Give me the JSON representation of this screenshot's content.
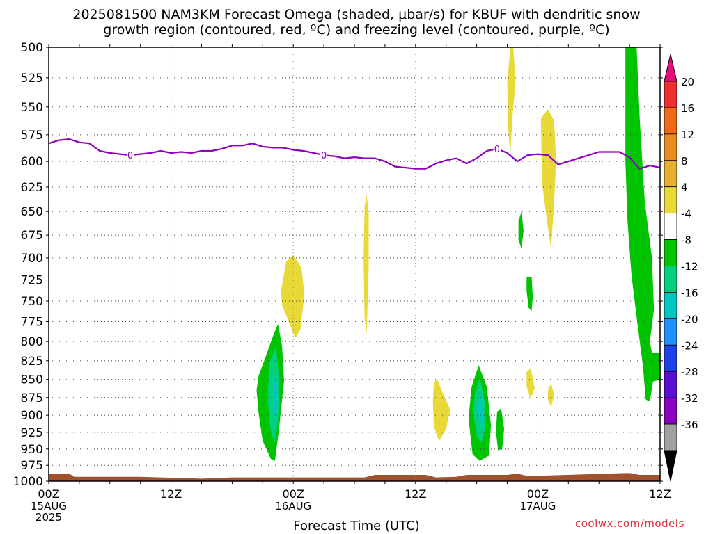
{
  "title": {
    "line1": "2025081500 NAM3KM Forecast Omega (shaded, μbar/s) for KBUF with dendritic snow",
    "line2": "growth region (contoured, red, ºC) and freezing level (contoured, purple, ºC)"
  },
  "xlabel": "Forecast Time (UTC)",
  "credit": "coolwx.com/models",
  "chart_data": {
    "type": "contour",
    "x_axis": {
      "unit": "forecast hour",
      "range": [
        0,
        60
      ],
      "ticks": [
        {
          "hour": 0,
          "label": "00Z",
          "sub1": "15AUG",
          "sub2": "2025"
        },
        {
          "hour": 12,
          "label": "12Z",
          "sub1": "",
          "sub2": ""
        },
        {
          "hour": 24,
          "label": "00Z",
          "sub1": "16AUG",
          "sub2": ""
        },
        {
          "hour": 36,
          "label": "12Z",
          "sub1": "",
          "sub2": ""
        },
        {
          "hour": 48,
          "label": "00Z",
          "sub1": "17AUG",
          "sub2": ""
        },
        {
          "hour": 60,
          "label": "12Z",
          "sub1": "",
          "sub2": ""
        }
      ],
      "minor_every_hours": 3
    },
    "y_axis": {
      "unit": "hPa",
      "range": [
        500,
        1000
      ],
      "log": true,
      "ticks": [
        500,
        525,
        550,
        575,
        600,
        625,
        650,
        675,
        700,
        725,
        750,
        775,
        800,
        825,
        850,
        875,
        900,
        925,
        950,
        975,
        1000
      ]
    },
    "grid": true,
    "colorbar": {
      "unit": "μbar/s",
      "levels": [
        20,
        16,
        12,
        8,
        4,
        -4,
        -8,
        -12,
        -16,
        -20,
        -24,
        -28,
        -32,
        -36
      ],
      "colors": [
        "#e0107e",
        "#f03030",
        "#f06818",
        "#e88c20",
        "#e6b030",
        "#e8d838",
        "#ffffff",
        "#00c400",
        "#00d080",
        "#00c8c0",
        "#1e90ff",
        "#1e40e8",
        "#5a10d0",
        "#8800c0",
        "#a0a0a0",
        "#000000"
      ]
    },
    "freezing_level": {
      "color": "#9000c0",
      "value_c": 0,
      "labels": [
        {
          "hour": 8,
          "p": 594
        },
        {
          "hour": 27,
          "p": 594
        },
        {
          "hour": 44,
          "p": 588
        }
      ],
      "points": [
        [
          0,
          583
        ],
        [
          1,
          580
        ],
        [
          2,
          579
        ],
        [
          3,
          582
        ],
        [
          4,
          583
        ],
        [
          5,
          590
        ],
        [
          6,
          592
        ],
        [
          7,
          593
        ],
        [
          8,
          594
        ],
        [
          9,
          593
        ],
        [
          10,
          592
        ],
        [
          11,
          590
        ],
        [
          12,
          592
        ],
        [
          13,
          591
        ],
        [
          14,
          592
        ],
        [
          15,
          590
        ],
        [
          16,
          590
        ],
        [
          17,
          588
        ],
        [
          18,
          585
        ],
        [
          19,
          585
        ],
        [
          20,
          583
        ],
        [
          21,
          586
        ],
        [
          22,
          587
        ],
        [
          23,
          587
        ],
        [
          24,
          589
        ],
        [
          25,
          590
        ],
        [
          26,
          592
        ],
        [
          27,
          594
        ],
        [
          28,
          595
        ],
        [
          29,
          597
        ],
        [
          30,
          596
        ],
        [
          31,
          597
        ],
        [
          32,
          597
        ],
        [
          33,
          600
        ],
        [
          34,
          605
        ],
        [
          35,
          606
        ],
        [
          36,
          607
        ],
        [
          37,
          607
        ],
        [
          38,
          602
        ],
        [
          39,
          599
        ],
        [
          40,
          597
        ],
        [
          41,
          602
        ],
        [
          42,
          597
        ],
        [
          43,
          590
        ],
        [
          44,
          588
        ],
        [
          45,
          592
        ],
        [
          46,
          600
        ],
        [
          47,
          594
        ],
        [
          48,
          593
        ],
        [
          49,
          594
        ],
        [
          50,
          603
        ],
        [
          51,
          600
        ],
        [
          52,
          597
        ],
        [
          53,
          594
        ],
        [
          54,
          591
        ],
        [
          55,
          591
        ],
        [
          56,
          591
        ],
        [
          57,
          596
        ],
        [
          58,
          607
        ],
        [
          59,
          604
        ],
        [
          60,
          606
        ]
      ]
    },
    "omega_regions": [
      {
        "level": "4 to 8",
        "color": "#e8d838",
        "points": [
          [
            22.8,
            738
          ],
          [
            23.3,
            704
          ],
          [
            24.0,
            697
          ],
          [
            24.8,
            711
          ],
          [
            25.1,
            742
          ],
          [
            24.7,
            785
          ],
          [
            24.2,
            796
          ],
          [
            23.6,
            776
          ],
          [
            22.9,
            755
          ]
        ]
      },
      {
        "level": "4 to 8",
        "color": "#e8d838",
        "points": [
          [
            31.0,
            645
          ],
          [
            31.2,
            633
          ],
          [
            31.4,
            652
          ],
          [
            31.4,
            710
          ],
          [
            31.2,
            790
          ],
          [
            31.0,
            770
          ],
          [
            30.9,
            700
          ]
        ]
      },
      {
        "level": "4 to 8",
        "color": "#e8d838",
        "points": [
          [
            37.8,
            855
          ],
          [
            38.1,
            849
          ],
          [
            38.6,
            866
          ],
          [
            39.4,
            892
          ],
          [
            39.0,
            920
          ],
          [
            38.3,
            938
          ],
          [
            37.8,
            916
          ],
          [
            37.7,
            880
          ]
        ]
      },
      {
        "level": "4 to 8",
        "color": "#e8d838",
        "points": [
          [
            45.0,
            530
          ],
          [
            45.3,
            500
          ],
          [
            45.6,
            500
          ],
          [
            45.8,
            530
          ],
          [
            45.5,
            560
          ],
          [
            45.3,
            594
          ],
          [
            45.1,
            570
          ]
        ]
      },
      {
        "level": "4 to 8",
        "color": "#e8d838",
        "points": [
          [
            48.3,
            560
          ],
          [
            49.0,
            552
          ],
          [
            49.6,
            562
          ],
          [
            49.8,
            600
          ],
          [
            49.6,
            640
          ],
          [
            49.3,
            690
          ],
          [
            48.9,
            660
          ],
          [
            48.4,
            620
          ]
        ]
      },
      {
        "level": "4 to 8",
        "color": "#e8d838",
        "points": [
          [
            46.9,
            840
          ],
          [
            47.3,
            835
          ],
          [
            47.7,
            862
          ],
          [
            47.3,
            876
          ],
          [
            46.9,
            860
          ]
        ]
      },
      {
        "level": "4 to 8",
        "color": "#e8d838",
        "points": [
          [
            49.0,
            865
          ],
          [
            49.3,
            855
          ],
          [
            49.6,
            872
          ],
          [
            49.3,
            888
          ],
          [
            49.0,
            878
          ]
        ]
      },
      {
        "level": "-4 to -8",
        "color": "#00c400",
        "points": [
          [
            20.6,
            845
          ],
          [
            21.5,
            812
          ],
          [
            22.1,
            790
          ],
          [
            22.5,
            778
          ],
          [
            22.9,
            806
          ],
          [
            23.1,
            852
          ],
          [
            22.6,
            920
          ],
          [
            22.2,
            968
          ],
          [
            21.8,
            965
          ],
          [
            21.0,
            938
          ],
          [
            20.6,
            897
          ],
          [
            20.4,
            865
          ]
        ]
      },
      {
        "level": "-8 to -12",
        "color": "#00d080",
        "points": [
          [
            21.6,
            830
          ],
          [
            22.3,
            805
          ],
          [
            22.6,
            850
          ],
          [
            22.5,
            910
          ],
          [
            22.2,
            940
          ],
          [
            21.8,
            925
          ],
          [
            21.5,
            880
          ]
        ]
      },
      {
        "level": "-12 to -16",
        "color": "#00c8c0",
        "points": [
          [
            22.0,
            855
          ],
          [
            22.3,
            840
          ],
          [
            22.5,
            880
          ],
          [
            22.3,
            912
          ],
          [
            22.1,
            895
          ]
        ]
      },
      {
        "level": "-4 to -8",
        "color": "#00c400",
        "points": [
          [
            41.5,
            860
          ],
          [
            42.2,
            831
          ],
          [
            43.0,
            860
          ],
          [
            43.4,
            915
          ],
          [
            43.2,
            960
          ],
          [
            42.3,
            968
          ],
          [
            41.6,
            958
          ],
          [
            41.2,
            905
          ]
        ]
      },
      {
        "level": "-8 to -12",
        "color": "#00d080",
        "points": [
          [
            41.8,
            870
          ],
          [
            42.3,
            848
          ],
          [
            42.8,
            880
          ],
          [
            42.9,
            918
          ],
          [
            42.5,
            940
          ],
          [
            42.0,
            930
          ],
          [
            41.7,
            900
          ]
        ]
      },
      {
        "level": "-12 to -16",
        "color": "#00c8c0",
        "points": [
          [
            42.1,
            885
          ],
          [
            42.4,
            870
          ],
          [
            42.6,
            900
          ],
          [
            42.4,
            920
          ],
          [
            42.2,
            905
          ]
        ]
      },
      {
        "level": "-4 to -8",
        "color": "#00c400",
        "points": [
          [
            44.0,
            895
          ],
          [
            44.4,
            890
          ],
          [
            44.7,
            920
          ],
          [
            44.5,
            950
          ],
          [
            44.1,
            952
          ],
          [
            43.9,
            925
          ]
        ]
      },
      {
        "level": "-4 to -8",
        "color": "#00c400",
        "points": [
          [
            46.1,
            660
          ],
          [
            46.4,
            650
          ],
          [
            46.6,
            670
          ],
          [
            46.4,
            690
          ],
          [
            46.1,
            680
          ]
        ]
      },
      {
        "level": "-4 to -8",
        "color": "#00c400",
        "points": [
          [
            46.9,
            722
          ],
          [
            47.4,
            722
          ],
          [
            47.5,
            745
          ],
          [
            47.4,
            762
          ],
          [
            47.1,
            758
          ],
          [
            46.9,
            738
          ]
        ]
      },
      {
        "level": "-4 to -8",
        "color": "#00c400",
        "points": [
          [
            56.6,
            500
          ],
          [
            57.7,
            500
          ],
          [
            58.0,
            560
          ],
          [
            58.5,
            640
          ],
          [
            59.2,
            700
          ],
          [
            59.4,
            760
          ],
          [
            59.0,
            800
          ],
          [
            59.2,
            815
          ],
          [
            60,
            815
          ],
          [
            60,
            850
          ],
          [
            59.3,
            853
          ],
          [
            59.0,
            880
          ],
          [
            58.6,
            878
          ],
          [
            58.3,
            830
          ],
          [
            57.8,
            780
          ],
          [
            57.2,
            720
          ],
          [
            56.8,
            660
          ],
          [
            56.6,
            600
          ]
        ]
      }
    ],
    "ground": {
      "color": "#a0522d",
      "points": [
        [
          0,
          988
        ],
        [
          2,
          988
        ],
        [
          2.5,
          993
        ],
        [
          9,
          993
        ],
        [
          15,
          996
        ],
        [
          18,
          994
        ],
        [
          31,
          994
        ],
        [
          32,
          990
        ],
        [
          37,
          990
        ],
        [
          38,
          994
        ],
        [
          40,
          993
        ],
        [
          41,
          990
        ],
        [
          45,
          990
        ],
        [
          46,
          988
        ],
        [
          47,
          992
        ],
        [
          57,
          987
        ],
        [
          58,
          990
        ],
        [
          60,
          990
        ]
      ]
    }
  }
}
